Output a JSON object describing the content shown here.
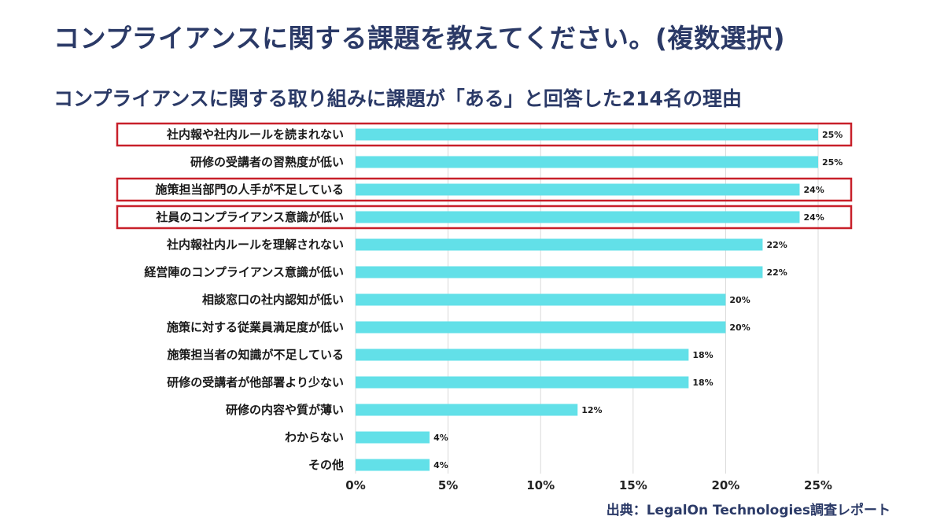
{
  "title": "コンプライアンスに関する課題を教えてください。(複数選択)",
  "subtitle": "コンプライアンスに関する取り組みに課題が「ある」と回答した214名の理由",
  "source": "出典：LegalOn Technologies調査レポート",
  "colors": {
    "bar": "#62e0e8",
    "highlight": "#c8202a",
    "title": "#2b3a67",
    "grid": "#d9d9d9"
  },
  "chart_data": {
    "type": "bar",
    "orientation": "horizontal",
    "categories": [
      "社内報や社内ルールを読まれない",
      "研修の受講者の習熟度が低い",
      "施策担当部門の人手が不足している",
      "社員のコンプライアンス意識が低い",
      "社内報社内ルールを理解されない",
      "経営陣のコンプライアンス意識が低い",
      "相談窓口の社内認知が低い",
      "施策に対する従業員満足度が低い",
      "施策担当者の知識が不足している",
      "研修の受講者が他部署より少ない",
      "研修の内容や質が薄い",
      "わからない",
      "その他"
    ],
    "values": [
      25,
      25,
      24,
      24,
      22,
      22,
      20,
      20,
      18,
      18,
      12,
      4,
      4
    ],
    "value_labels": [
      "25%",
      "25%",
      "24%",
      "24%",
      "22%",
      "22%",
      "20%",
      "20%",
      "18%",
      "18%",
      "12%",
      "4%",
      "4%"
    ],
    "unit": "%",
    "xlim": [
      0,
      25
    ],
    "xticks": [
      0,
      5,
      10,
      15,
      20,
      25
    ],
    "xtick_labels": [
      "0%",
      "5%",
      "10%",
      "15%",
      "20%",
      "25%"
    ],
    "grid": "vertical",
    "highlighted_categories": [
      "社内報や社内ルールを読まれない",
      "施策担当部門の人手が不足している",
      "社員のコンプライアンス意識が低い"
    ]
  }
}
